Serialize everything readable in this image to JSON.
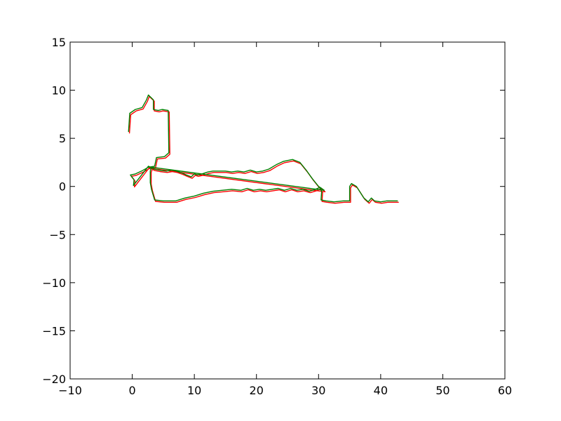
{
  "chart_data": {
    "type": "line",
    "title": "",
    "xlabel": "",
    "ylabel": "",
    "xlim": [
      -10,
      60
    ],
    "ylim": [
      -20,
      15
    ],
    "x_ticks": [
      -10,
      0,
      10,
      20,
      30,
      40,
      50,
      60
    ],
    "y_ticks": [
      -20,
      -15,
      -10,
      -5,
      0,
      5,
      10,
      15
    ],
    "x_tick_labels": [
      "−10",
      "0",
      "10",
      "20",
      "30",
      "40",
      "50",
      "60"
    ],
    "y_tick_labels": [
      "−20",
      "−15",
      "−10",
      "−5",
      "0",
      "5",
      "10",
      "15"
    ],
    "grid": false,
    "legend": "none",
    "series": [
      {
        "color": "#ff0000",
        "offset": [
          0.15,
          -0.15
        ],
        "points": [
          [
            -0.6,
            5.7
          ],
          [
            -0.4,
            7.6
          ],
          [
            0.5,
            8.0
          ],
          [
            1.6,
            8.2
          ],
          [
            2.3,
            9.0
          ],
          [
            2.6,
            9.5
          ],
          [
            3.4,
            9.0
          ],
          [
            3.4,
            8.0
          ],
          [
            4.2,
            7.9
          ],
          [
            4.8,
            8.0
          ],
          [
            5.8,
            7.9
          ],
          [
            5.9,
            3.5
          ],
          [
            5.2,
            3.1
          ],
          [
            3.9,
            3.0
          ],
          [
            3.6,
            2.1
          ],
          [
            2.6,
            2.0
          ],
          [
            1.5,
            1.6
          ],
          [
            0.5,
            1.3
          ],
          [
            -0.3,
            1.2
          ],
          [
            0.3,
            0.7
          ],
          [
            0.2,
            0.1
          ],
          [
            2.6,
            2.1
          ],
          [
            3.5,
            1.8
          ],
          [
            4.3,
            1.7
          ],
          [
            5.5,
            1.6
          ],
          [
            6.3,
            1.7
          ],
          [
            7.1,
            1.6
          ],
          [
            8.0,
            1.4
          ],
          [
            8.7,
            1.2
          ],
          [
            9.5,
            1.0
          ],
          [
            10.0,
            1.3
          ],
          [
            10.5,
            1.2
          ],
          [
            11.2,
            1.3
          ],
          [
            12.2,
            1.5
          ],
          [
            13.0,
            1.6
          ],
          [
            14.0,
            1.6
          ],
          [
            15.0,
            1.6
          ],
          [
            16.0,
            1.5
          ],
          [
            17.0,
            1.6
          ],
          [
            18.0,
            1.5
          ],
          [
            19.0,
            1.7
          ],
          [
            20.0,
            1.5
          ],
          [
            21.0,
            1.6
          ],
          [
            22.0,
            1.8
          ],
          [
            23.3,
            2.3
          ],
          [
            24.3,
            2.6
          ],
          [
            25.8,
            2.8
          ],
          [
            27.0,
            2.5
          ],
          [
            28.0,
            1.7
          ],
          [
            29.0,
            0.8
          ],
          [
            30.0,
            0.0
          ],
          [
            30.5,
            -0.2
          ],
          [
            30.9,
            -0.4
          ],
          [
            3.1,
            2.0
          ],
          [
            3.0,
            1.8
          ],
          [
            2.9,
            1.6
          ],
          [
            2.9,
            0.4
          ],
          [
            3.1,
            -0.3
          ],
          [
            3.6,
            -1.4
          ],
          [
            5.0,
            -1.5
          ],
          [
            7.0,
            -1.5
          ],
          [
            8.5,
            -1.2
          ],
          [
            10.0,
            -1.0
          ],
          [
            11.5,
            -0.7
          ],
          [
            13.0,
            -0.5
          ],
          [
            14.5,
            -0.4
          ],
          [
            16.0,
            -0.3
          ],
          [
            17.5,
            -0.4
          ],
          [
            18.5,
            -0.2
          ],
          [
            19.5,
            -0.4
          ],
          [
            20.5,
            -0.3
          ],
          [
            21.5,
            -0.4
          ],
          [
            22.5,
            -0.3
          ],
          [
            23.5,
            -0.2
          ],
          [
            24.5,
            -0.4
          ],
          [
            25.5,
            -0.2
          ],
          [
            26.5,
            -0.4
          ],
          [
            27.5,
            -0.3
          ],
          [
            28.5,
            -0.5
          ],
          [
            29.5,
            -0.3
          ],
          [
            30.2,
            -0.1
          ],
          [
            30.5,
            -0.5
          ],
          [
            30.4,
            -1.4
          ],
          [
            31.2,
            -1.5
          ],
          [
            32.5,
            -1.6
          ],
          [
            34.0,
            -1.5
          ],
          [
            35.0,
            -1.5
          ],
          [
            35.0,
            0.0
          ],
          [
            35.3,
            0.3
          ],
          [
            36.1,
            0.0
          ],
          [
            37.3,
            -1.2
          ],
          [
            38.0,
            -1.6
          ],
          [
            38.5,
            -1.2
          ],
          [
            39.0,
            -1.5
          ],
          [
            40.0,
            -1.6
          ],
          [
            41.0,
            -1.5
          ],
          [
            42.0,
            -1.5
          ],
          [
            42.7,
            -1.5
          ]
        ]
      },
      {
        "color": "#008000",
        "offset": [
          0,
          0
        ],
        "points": [
          [
            -0.6,
            5.7
          ],
          [
            -0.4,
            7.6
          ],
          [
            0.5,
            8.0
          ],
          [
            1.6,
            8.2
          ],
          [
            2.3,
            9.0
          ],
          [
            2.6,
            9.5
          ],
          [
            3.4,
            9.0
          ],
          [
            3.4,
            8.0
          ],
          [
            4.2,
            7.9
          ],
          [
            4.8,
            8.0
          ],
          [
            5.8,
            7.9
          ],
          [
            5.9,
            3.5
          ],
          [
            5.2,
            3.1
          ],
          [
            3.9,
            3.0
          ],
          [
            3.6,
            2.1
          ],
          [
            2.6,
            2.0
          ],
          [
            1.5,
            1.6
          ],
          [
            0.5,
            1.3
          ],
          [
            -0.3,
            1.2
          ],
          [
            0.3,
            0.7
          ],
          [
            0.2,
            0.1
          ],
          [
            2.6,
            2.1
          ],
          [
            3.5,
            1.8
          ],
          [
            4.3,
            1.7
          ],
          [
            5.5,
            1.6
          ],
          [
            6.3,
            1.7
          ],
          [
            7.1,
            1.6
          ],
          [
            8.0,
            1.4
          ],
          [
            8.7,
            1.2
          ],
          [
            9.5,
            1.0
          ],
          [
            10.0,
            1.3
          ],
          [
            10.5,
            1.2
          ],
          [
            11.2,
            1.3
          ],
          [
            12.2,
            1.5
          ],
          [
            13.0,
            1.6
          ],
          [
            14.0,
            1.6
          ],
          [
            15.0,
            1.6
          ],
          [
            16.0,
            1.5
          ],
          [
            17.0,
            1.6
          ],
          [
            18.0,
            1.5
          ],
          [
            19.0,
            1.7
          ],
          [
            20.0,
            1.5
          ],
          [
            21.0,
            1.6
          ],
          [
            22.0,
            1.8
          ],
          [
            23.3,
            2.3
          ],
          [
            24.3,
            2.6
          ],
          [
            25.8,
            2.8
          ],
          [
            27.0,
            2.5
          ],
          [
            28.0,
            1.7
          ],
          [
            29.0,
            0.8
          ],
          [
            30.0,
            0.0
          ],
          [
            30.5,
            -0.2
          ],
          [
            30.9,
            -0.4
          ],
          [
            3.1,
            2.0
          ],
          [
            3.0,
            1.8
          ],
          [
            2.9,
            1.6
          ],
          [
            2.9,
            0.4
          ],
          [
            3.1,
            -0.3
          ],
          [
            3.6,
            -1.4
          ],
          [
            5.0,
            -1.5
          ],
          [
            7.0,
            -1.5
          ],
          [
            8.5,
            -1.2
          ],
          [
            10.0,
            -1.0
          ],
          [
            11.5,
            -0.7
          ],
          [
            13.0,
            -0.5
          ],
          [
            14.5,
            -0.4
          ],
          [
            16.0,
            -0.3
          ],
          [
            17.5,
            -0.4
          ],
          [
            18.5,
            -0.2
          ],
          [
            19.5,
            -0.4
          ],
          [
            20.5,
            -0.3
          ],
          [
            21.5,
            -0.4
          ],
          [
            22.5,
            -0.3
          ],
          [
            23.5,
            -0.2
          ],
          [
            24.5,
            -0.4
          ],
          [
            25.5,
            -0.2
          ],
          [
            26.5,
            -0.4
          ],
          [
            27.5,
            -0.3
          ],
          [
            28.5,
            -0.5
          ],
          [
            29.5,
            -0.3
          ],
          [
            30.2,
            -0.1
          ],
          [
            30.5,
            -0.5
          ],
          [
            30.4,
            -1.4
          ],
          [
            31.2,
            -1.5
          ],
          [
            32.5,
            -1.6
          ],
          [
            34.0,
            -1.5
          ],
          [
            35.0,
            -1.5
          ],
          [
            35.0,
            0.0
          ],
          [
            35.3,
            0.3
          ],
          [
            36.1,
            0.0
          ],
          [
            37.3,
            -1.2
          ],
          [
            38.0,
            -1.6
          ],
          [
            38.5,
            -1.2
          ],
          [
            39.0,
            -1.5
          ],
          [
            40.0,
            -1.6
          ],
          [
            41.0,
            -1.5
          ],
          [
            42.0,
            -1.5
          ],
          [
            42.7,
            -1.5
          ]
        ]
      }
    ]
  }
}
